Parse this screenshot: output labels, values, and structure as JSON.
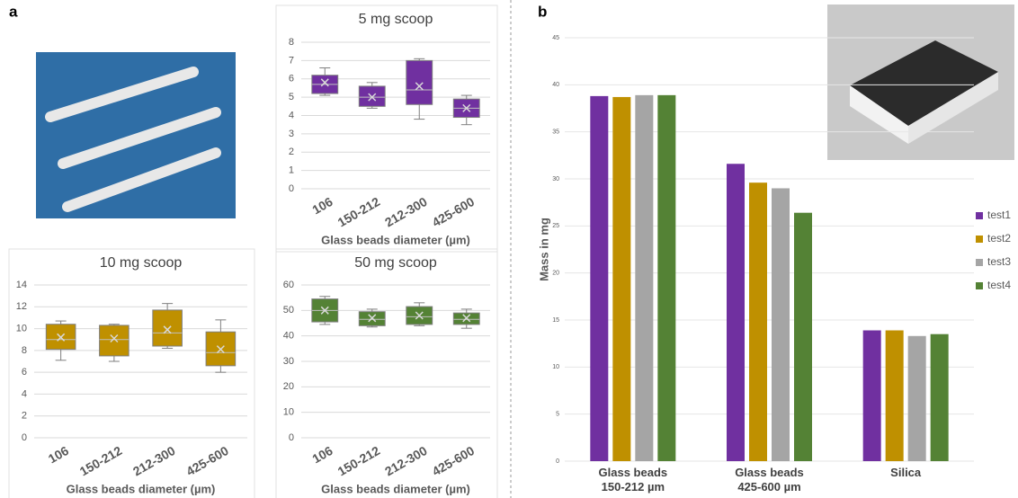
{
  "panels": [
    "a",
    "b"
  ],
  "chart_data": [
    {
      "type": "box",
      "title": "5 mg scoop",
      "x_label": "Glass beads diameter (µm)",
      "color": "#7030a0",
      "categories": [
        "106",
        "150-212",
        "212-300",
        "425-600"
      ],
      "boxes": [
        {
          "whisker_low": 5.1,
          "q1": 5.2,
          "median": 5.7,
          "q3": 6.2,
          "whisker_high": 6.6,
          "mean": 5.8
        },
        {
          "whisker_low": 4.4,
          "q1": 4.5,
          "median": 5.0,
          "q3": 5.6,
          "whisker_high": 5.8,
          "mean": 5.0
        },
        {
          "whisker_low": 3.8,
          "q1": 4.6,
          "median": 5.4,
          "q3": 7.0,
          "whisker_high": 7.1,
          "mean": 5.6
        },
        {
          "whisker_low": 3.5,
          "q1": 3.9,
          "median": 4.4,
          "q3": 4.9,
          "whisker_high": 5.1,
          "mean": 4.4
        }
      ],
      "ylim": [
        0,
        8
      ],
      "yticks": [
        0,
        1,
        2,
        3,
        4,
        5,
        6,
        7,
        8
      ],
      "grid": true
    },
    {
      "type": "box",
      "title": "10 mg scoop",
      "x_label": "Glass beads diameter (µm)",
      "color": "#bf9000",
      "categories": [
        "106",
        "150-212",
        "212-300",
        "425-600"
      ],
      "boxes": [
        {
          "whisker_low": 7.1,
          "q1": 8.1,
          "median": 9.0,
          "q3": 10.4,
          "whisker_high": 10.7,
          "mean": 9.2
        },
        {
          "whisker_low": 7.0,
          "q1": 7.5,
          "median": 9.0,
          "q3": 10.3,
          "whisker_high": 10.4,
          "mean": 9.1
        },
        {
          "whisker_low": 8.2,
          "q1": 8.4,
          "median": 9.6,
          "q3": 11.7,
          "whisker_high": 12.3,
          "mean": 9.9
        },
        {
          "whisker_low": 6.0,
          "q1": 6.6,
          "median": 7.8,
          "q3": 9.7,
          "whisker_high": 10.8,
          "mean": 8.1
        }
      ],
      "ylim": [
        0,
        14
      ],
      "yticks": [
        0,
        2,
        4,
        6,
        8,
        10,
        12,
        14
      ],
      "grid": true
    },
    {
      "type": "box",
      "title": "50 mg scoop",
      "x_label": "Glass beads diameter (µm)",
      "color": "#548235",
      "categories": [
        "106",
        "150-212",
        "212-300",
        "425-600"
      ],
      "boxes": [
        {
          "whisker_low": 44.5,
          "q1": 45.5,
          "median": 50,
          "q3": 54.5,
          "whisker_high": 55.5,
          "mean": 50
        },
        {
          "whisker_low": 43.5,
          "q1": 44,
          "median": 46.5,
          "q3": 49.5,
          "whisker_high": 50.5,
          "mean": 47
        },
        {
          "whisker_low": 44,
          "q1": 44.5,
          "median": 47.5,
          "q3": 51.5,
          "whisker_high": 53,
          "mean": 48
        },
        {
          "whisker_low": 43,
          "q1": 44.5,
          "median": 46.5,
          "q3": 49,
          "whisker_high": 50.5,
          "mean": 47
        }
      ],
      "ylim": [
        0,
        60
      ],
      "yticks": [
        0,
        10,
        20,
        30,
        40,
        50,
        60
      ],
      "grid": true
    },
    {
      "type": "bar",
      "y_label": "Mass in mg",
      "legend": "right",
      "categories": [
        "Glass beads 150-212 µm",
        "Glass beads 425-600 µm",
        "Silica"
      ],
      "series": [
        {
          "name": "test1",
          "color": "#7030a0",
          "values": [
            38.8,
            31.6,
            13.9
          ]
        },
        {
          "name": "test2",
          "color": "#bf9000",
          "values": [
            38.7,
            29.6,
            13.9
          ]
        },
        {
          "name": "test3",
          "color": "#a5a5a5",
          "values": [
            38.9,
            29.0,
            13.3
          ]
        },
        {
          "name": "test4",
          "color": "#548235",
          "values": [
            38.9,
            26.4,
            13.5
          ]
        }
      ],
      "ylim": [
        0,
        45
      ],
      "yticks": [
        0,
        5,
        10,
        15,
        20,
        25,
        30,
        35,
        40,
        45
      ],
      "grid": true
    }
  ]
}
